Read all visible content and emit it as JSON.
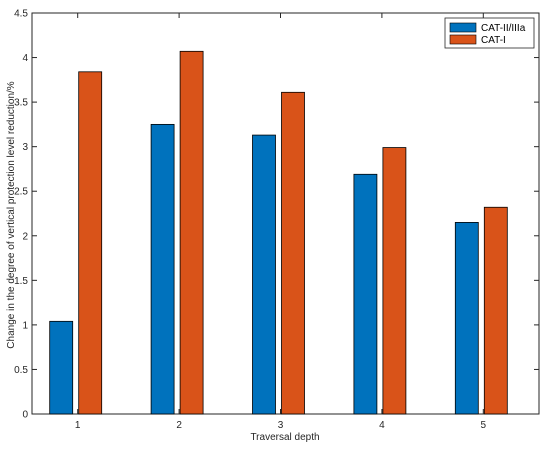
{
  "chart_data": {
    "type": "bar",
    "categories": [
      "1",
      "2",
      "3",
      "4",
      "5"
    ],
    "series": [
      {
        "name": "CAT-II/IIIa",
        "color": "#0072BD",
        "values": [
          1.04,
          3.25,
          3.13,
          2.69,
          2.15
        ]
      },
      {
        "name": "CAT-I",
        "color": "#D95319",
        "values": [
          3.84,
          4.07,
          3.61,
          2.99,
          2.32
        ]
      }
    ],
    "title": "",
    "xlabel": "Traversal depth",
    "ylabel": "Change in the degree of vertical protection level reduction/%",
    "ylim": [
      0,
      4.5
    ],
    "yticks": [
      0,
      0.5,
      1,
      1.5,
      2,
      2.5,
      3,
      3.5,
      4,
      4.5
    ],
    "ytick_labels": [
      "0",
      "0.5",
      "1",
      "1.5",
      "2",
      "2.5",
      "3",
      "3.5",
      "4",
      "4.5"
    ],
    "grid": false,
    "legend_position": "top-right"
  }
}
